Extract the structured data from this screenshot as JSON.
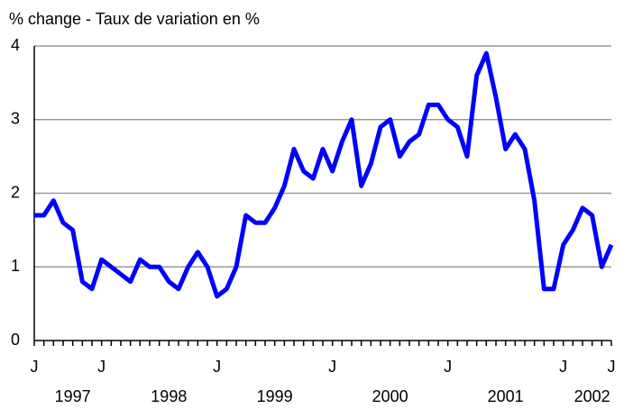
{
  "chart_data": {
    "type": "line",
    "title": "% change - Taux de variation en %",
    "categories": [
      "J",
      null,
      null,
      null,
      null,
      null,
      null,
      "J",
      null,
      null,
      null,
      null,
      null,
      null,
      null,
      null,
      null,
      null,
      null,
      "J",
      null,
      null,
      null,
      null,
      null,
      null,
      null,
      null,
      null,
      null,
      null,
      "J",
      null,
      null,
      null,
      null,
      null,
      null,
      null,
      null,
      null,
      null,
      null,
      "J",
      null,
      null,
      null,
      null,
      null,
      null,
      null,
      null,
      null,
      null,
      null,
      "J",
      null,
      null,
      null,
      null,
      "J"
    ],
    "category_groups": [
      null,
      null,
      null,
      null,
      "1997",
      null,
      null,
      null,
      null,
      null,
      null,
      null,
      null,
      null,
      "1998",
      null,
      null,
      null,
      null,
      null,
      null,
      null,
      null,
      null,
      null,
      "1999",
      null,
      null,
      null,
      null,
      null,
      null,
      null,
      null,
      null,
      null,
      null,
      "2000",
      null,
      null,
      null,
      null,
      null,
      null,
      null,
      null,
      null,
      null,
      null,
      "2001",
      null,
      null,
      null,
      null,
      null,
      null,
      null,
      null,
      "2002",
      null,
      null
    ],
    "series": [
      {
        "name": null,
        "color": "#0000ff",
        "values": [
          1.7,
          1.7,
          1.9,
          1.6,
          1.5,
          0.8,
          0.7,
          1.1,
          1.0,
          0.9,
          0.8,
          1.1,
          1.0,
          1.0,
          0.8,
          0.7,
          1.0,
          1.2,
          1.0,
          0.6,
          0.7,
          1.0,
          1.7,
          1.6,
          1.6,
          1.8,
          2.1,
          2.6,
          2.3,
          2.2,
          2.6,
          2.3,
          2.7,
          3.0,
          2.1,
          2.4,
          2.9,
          3.0,
          2.5,
          2.7,
          2.8,
          3.2,
          3.2,
          3.0,
          2.9,
          2.5,
          3.6,
          3.9,
          3.3,
          2.6,
          2.8,
          2.6,
          1.9,
          0.7,
          0.7,
          1.3,
          1.5,
          1.8,
          1.7,
          1.0,
          1.3
        ]
      }
    ],
    "ylim": [
      0,
      4
    ],
    "yticks": [
      0,
      1,
      2,
      3,
      4
    ],
    "grid": true
  }
}
